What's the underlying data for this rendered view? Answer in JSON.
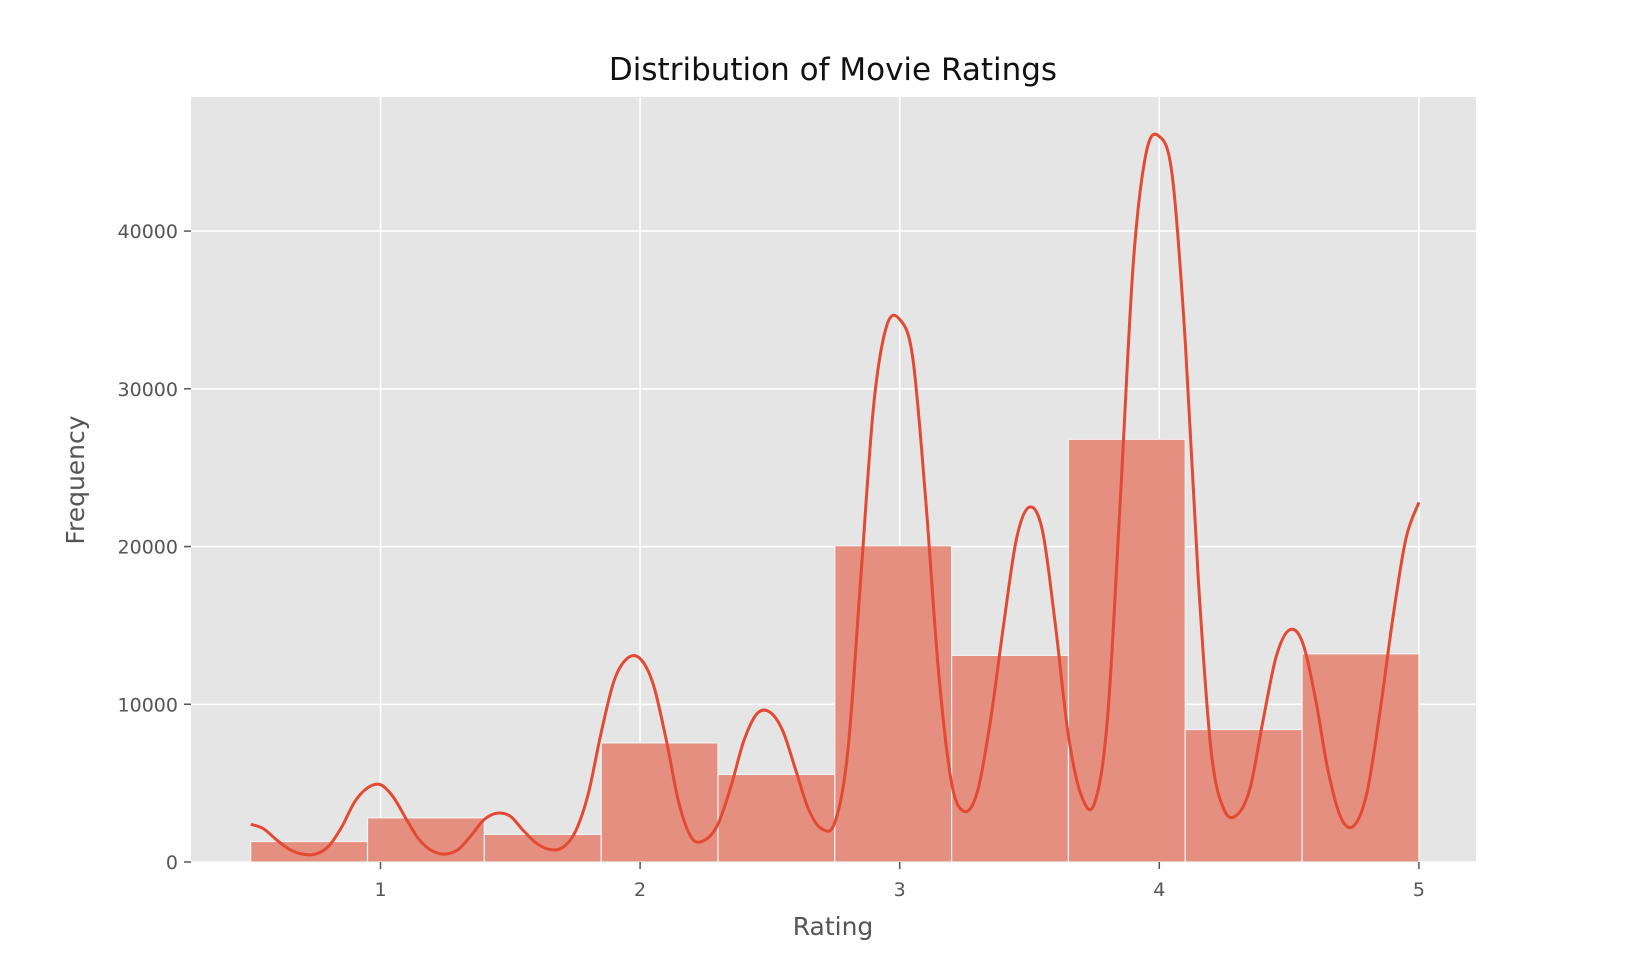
{
  "chart_data": {
    "type": "bar",
    "title": "Distribution of Movie Ratings",
    "xlabel": "Rating",
    "ylabel": "Frequency",
    "bins": [
      {
        "x0": 0.5,
        "x1": 0.95,
        "value": 1300
      },
      {
        "x0": 0.95,
        "x1": 1.4,
        "value": 2800
      },
      {
        "x0": 1.4,
        "x1": 1.85,
        "value": 1750
      },
      {
        "x0": 1.85,
        "x1": 2.3,
        "value": 7550
      },
      {
        "x0": 2.3,
        "x1": 2.75,
        "value": 5550
      },
      {
        "x0": 2.75,
        "x1": 3.2,
        "value": 20050
      },
      {
        "x0": 3.2,
        "x1": 3.65,
        "value": 13100
      },
      {
        "x0": 3.65,
        "x1": 4.1,
        "value": 26800
      },
      {
        "x0": 4.1,
        "x1": 4.55,
        "value": 8400
      },
      {
        "x0": 4.55,
        "x1": 5.0,
        "value": 13200
      }
    ],
    "kde": {
      "name": "kde",
      "x": [
        0.5,
        0.55,
        0.6,
        0.65,
        0.7,
        0.75,
        0.8,
        0.85,
        0.9,
        0.95,
        1.0,
        1.05,
        1.1,
        1.15,
        1.2,
        1.25,
        1.3,
        1.35,
        1.4,
        1.45,
        1.5,
        1.55,
        1.6,
        1.65,
        1.7,
        1.75,
        1.8,
        1.85,
        1.9,
        1.95,
        2.0,
        2.05,
        2.1,
        2.15,
        2.2,
        2.25,
        2.3,
        2.35,
        2.4,
        2.45,
        2.5,
        2.55,
        2.6,
        2.65,
        2.7,
        2.75,
        2.8,
        2.85,
        2.9,
        2.95,
        3.0,
        3.05,
        3.1,
        3.15,
        3.2,
        3.25,
        3.3,
        3.35,
        3.4,
        3.45,
        3.5,
        3.55,
        3.6,
        3.65,
        3.7,
        3.75,
        3.8,
        3.85,
        3.9,
        3.95,
        4.0,
        4.05,
        4.1,
        4.15,
        4.2,
        4.25,
        4.3,
        4.35,
        4.4,
        4.45,
        4.5,
        4.55,
        4.6,
        4.65,
        4.7,
        4.75,
        4.8,
        4.85,
        4.9,
        4.95,
        5.0
      ],
      "y": [
        2400,
        2100,
        1400,
        800,
        500,
        500,
        1000,
        2200,
        3800,
        4700,
        4900,
        4100,
        2700,
        1400,
        700,
        500,
        800,
        1700,
        2700,
        3100,
        2900,
        2000,
        1200,
        800,
        900,
        1900,
        4300,
        8200,
        11500,
        12900,
        12900,
        11300,
        7800,
        3700,
        1500,
        1400,
        2400,
        4800,
        7700,
        9400,
        9500,
        8300,
        5800,
        3300,
        2100,
        2500,
        7000,
        18000,
        29000,
        34000,
        34400,
        32000,
        23000,
        12000,
        5000,
        3200,
        4500,
        9000,
        15000,
        20500,
        22500,
        21000,
        15000,
        8000,
        4200,
        3700,
        9000,
        23000,
        38000,
        45000,
        46000,
        43500,
        33000,
        18000,
        7000,
        3300,
        3000,
        4700,
        9000,
        13000,
        14700,
        14000,
        10500,
        5800,
        2800,
        2300,
        4400,
        9500,
        15500,
        20500,
        22800
      ]
    },
    "xlim": [
      0.27,
      5.22
    ],
    "ylim": [
      0,
      48500
    ],
    "xticks": [
      "1",
      "2",
      "3",
      "4",
      "5"
    ],
    "yticks": [
      "0",
      "10000",
      "20000",
      "30000",
      "40000"
    ],
    "grid": true,
    "colors": {
      "plot_background": "#e5e5e5",
      "grid": "#ffffff",
      "bar_fill": "#e48f7f",
      "bar_edge": "#f2f2f2",
      "kde_line": "#e24a33",
      "tick_text": "#555555",
      "title_text": "#111111"
    }
  }
}
